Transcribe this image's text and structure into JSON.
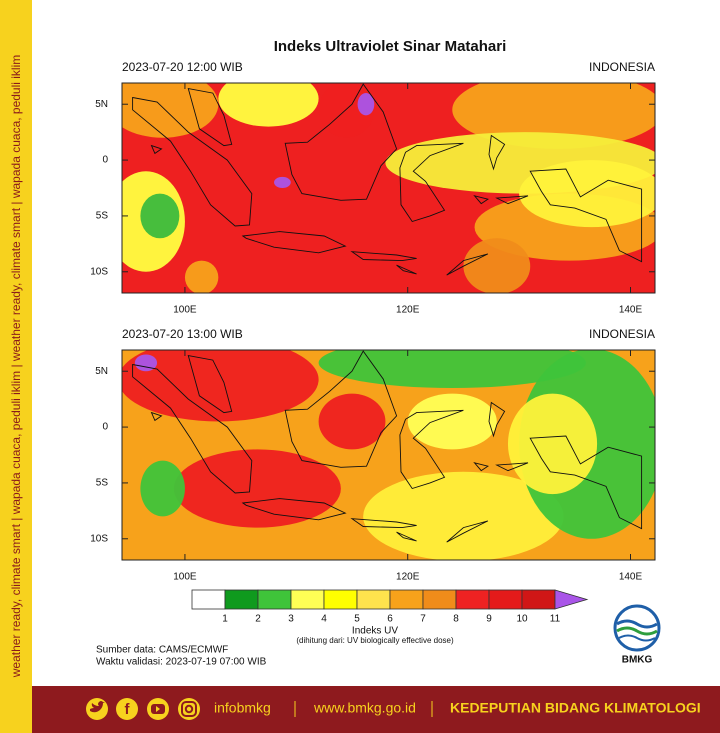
{
  "title": "Indeks Ultraviolet Sinar Matahari",
  "sidebar_text": "weather ready, climate smart  |  wapada cuaca, peduli iklim  |  weather ready, climate smart  |  wapada cuaca, peduli iklim",
  "maps": [
    {
      "time_label": "2023-07-20  12:00 WIB",
      "region": "INDONESIA",
      "xlim": [
        94.35,
        142.2
      ],
      "ylim": [
        -11.9,
        6.9
      ],
      "xticks": [
        {
          "value": 100,
          "label": "100E"
        },
        {
          "value": 120,
          "label": "120E"
        },
        {
          "value": 140,
          "label": "140E"
        }
      ],
      "yticks": [
        {
          "value": 5,
          "label": "5N"
        },
        0,
        {
          "value": -5,
          "label": "5S"
        },
        {
          "value": -10,
          "label": "10S"
        }
      ]
    },
    {
      "time_label": "2023-07-20  13:00 WIB",
      "region": "INDONESIA",
      "xlim": [
        94.35,
        142.2
      ],
      "ylim": [
        -11.9,
        6.9
      ],
      "xticks": [
        {
          "value": 100,
          "label": "100E"
        },
        {
          "value": 120,
          "label": "120E"
        },
        {
          "value": 140,
          "label": "140E"
        }
      ],
      "yticks": [
        {
          "value": 5,
          "label": "5N"
        },
        0,
        {
          "value": -5,
          "label": "5S"
        },
        {
          "value": -10,
          "label": "10S"
        }
      ]
    }
  ],
  "colorbar": {
    "ticks": [
      1,
      2,
      3,
      4,
      5,
      6,
      7,
      8,
      9,
      10,
      11
    ],
    "colors": [
      "#ffffff",
      "#0f9a1e",
      "#3fc43a",
      "#ffff55",
      "#ffff00",
      "#ffe34d",
      "#f7a21b",
      "#f08c1a",
      "#ee2222",
      "#e41a1a",
      "#d01616"
    ],
    "extend_color": "#a955e8",
    "label": "Indeks UV",
    "note": "(dihitung dari: UV biologically effective dose)"
  },
  "source": "Sumber data: CAMS/ECMWF",
  "validation": "Waktu validasi: 2023-07-19 07:00 WIB",
  "logo_text": "BMKG",
  "footer": {
    "handle": "infobmkg",
    "website": "www.bmkg.go.id",
    "division": "KEDEPUTIAN BIDANG KLIMATOLOGI"
  }
}
